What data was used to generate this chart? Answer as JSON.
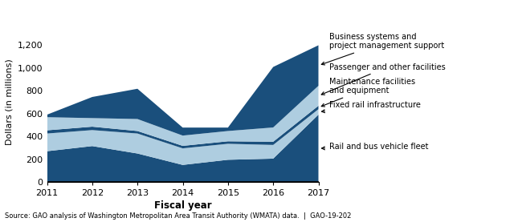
{
  "years": [
    2011,
    2012,
    2013,
    2014,
    2015,
    2016,
    2017
  ],
  "rail_bus": [
    270,
    315,
    250,
    150,
    195,
    205,
    590
  ],
  "fixed_rail": [
    155,
    140,
    175,
    145,
    140,
    120,
    48
  ],
  "maintenance": [
    28,
    30,
    22,
    22,
    22,
    28,
    30
  ],
  "passenger": [
    115,
    75,
    105,
    90,
    90,
    125,
    175
  ],
  "business": [
    22,
    185,
    265,
    70,
    30,
    530,
    355
  ],
  "dark_blue": "#1a4f7c",
  "light_blue": "#aecde0",
  "ylabel": "Dollars (in millions)",
  "xlabel": "Fiscal year",
  "ylim": [
    0,
    1400
  ],
  "yticks": [
    0,
    200,
    400,
    600,
    800,
    1000,
    1200
  ],
  "ytick_labels": [
    "0",
    "200",
    "400",
    "600",
    "800",
    "1,000",
    "1,200"
  ],
  "source": "Source: GAO analysis of Washington Metropolitan Area Transit Authority (WMATA) data.  |  GAO-19-202",
  "ann_business": "Business systems and\nproject management support",
  "ann_passenger": "Passenger and other facilities",
  "ann_maintenance": "Maintenance facilities\nand equipment",
  "ann_fixed": "Fixed rail infrastructure",
  "ann_rail_bus": "Rail and bus vehicle fleet"
}
